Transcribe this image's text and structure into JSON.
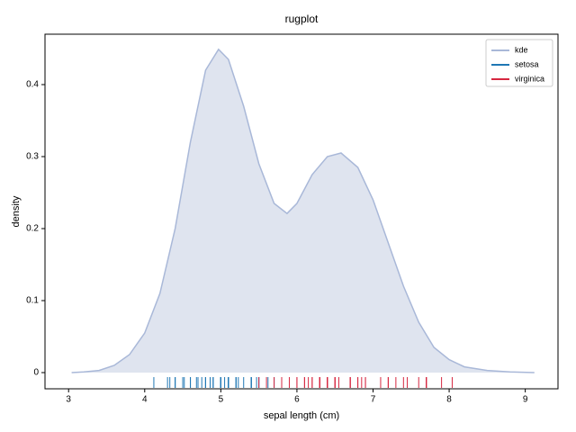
{
  "chart_data": {
    "type": "kde-rug",
    "title": "rugplot",
    "x_label": "sepal length (cm)",
    "y_label": "density",
    "xlim": [
      2.69,
      9.43
    ],
    "ylim": [
      -0.0225,
      0.47
    ],
    "xticks": [
      3,
      4,
      5,
      6,
      7,
      8,
      9
    ],
    "yticks": [
      0,
      0.1,
      0.2,
      0.3,
      0.4
    ],
    "legend_position": "upper right",
    "series": [
      {
        "name": "kde",
        "color": "#a9b8d8",
        "fill": "#dfe4ef",
        "x": [
          3.04,
          3.2,
          3.4,
          3.6,
          3.8,
          4.0,
          4.2,
          4.4,
          4.6,
          4.8,
          4.97,
          5.1,
          5.3,
          5.5,
          5.7,
          5.87,
          6.0,
          6.2,
          6.4,
          6.58,
          6.8,
          7.0,
          7.2,
          7.4,
          7.6,
          7.8,
          8.0,
          8.2,
          8.5,
          8.8,
          9.12
        ],
        "values": [
          0,
          0.001,
          0.003,
          0.01,
          0.025,
          0.055,
          0.11,
          0.2,
          0.32,
          0.42,
          0.449,
          0.435,
          0.37,
          0.29,
          0.235,
          0.221,
          0.235,
          0.275,
          0.3,
          0.305,
          0.285,
          0.24,
          0.18,
          0.12,
          0.07,
          0.035,
          0.018,
          0.008,
          0.003,
          0.001,
          0
        ]
      },
      {
        "name": "setosa",
        "color": "#1f77b4",
        "values": [
          5.1,
          4.9,
          4.7,
          4.6,
          5.0,
          5.4,
          4.6,
          5.0,
          4.4,
          4.9,
          5.4,
          4.8,
          4.8,
          4.3,
          5.8,
          5.7,
          5.4,
          5.1,
          5.7,
          5.1,
          5.4,
          5.1,
          4.6,
          5.1,
          4.8,
          5.0,
          5.0,
          5.2,
          5.2,
          4.7,
          4.8,
          5.4,
          5.2,
          5.5,
          4.9,
          5.0,
          5.5,
          4.9,
          4.4,
          5.1,
          5.0,
          4.5,
          4.4,
          5.0,
          5.1,
          4.8,
          5.1,
          4.6,
          5.3,
          5.0,
          4.12,
          4.33,
          4.52,
          4.68,
          4.75,
          4.86,
          5.05,
          5.23,
          5.47,
          5.62
        ]
      },
      {
        "name": "virginica",
        "color": "#d62740",
        "values": [
          6.3,
          5.8,
          7.1,
          6.3,
          6.5,
          7.6,
          5.5,
          7.3,
          6.7,
          7.2,
          6.5,
          6.4,
          6.8,
          5.7,
          5.8,
          6.4,
          6.5,
          7.7,
          7.7,
          6.0,
          6.9,
          5.6,
          7.7,
          6.3,
          6.7,
          7.2,
          6.2,
          6.1,
          6.4,
          7.2,
          7.4,
          7.9,
          6.4,
          6.3,
          6.1,
          7.7,
          6.3,
          6.4,
          6.0,
          6.9,
          6.7,
          6.9,
          5.8,
          6.8,
          6.7,
          6.7,
          6.3,
          6.5,
          6.2,
          5.9,
          8.04,
          7.45,
          6.85,
          6.55,
          6.15
        ]
      }
    ]
  }
}
